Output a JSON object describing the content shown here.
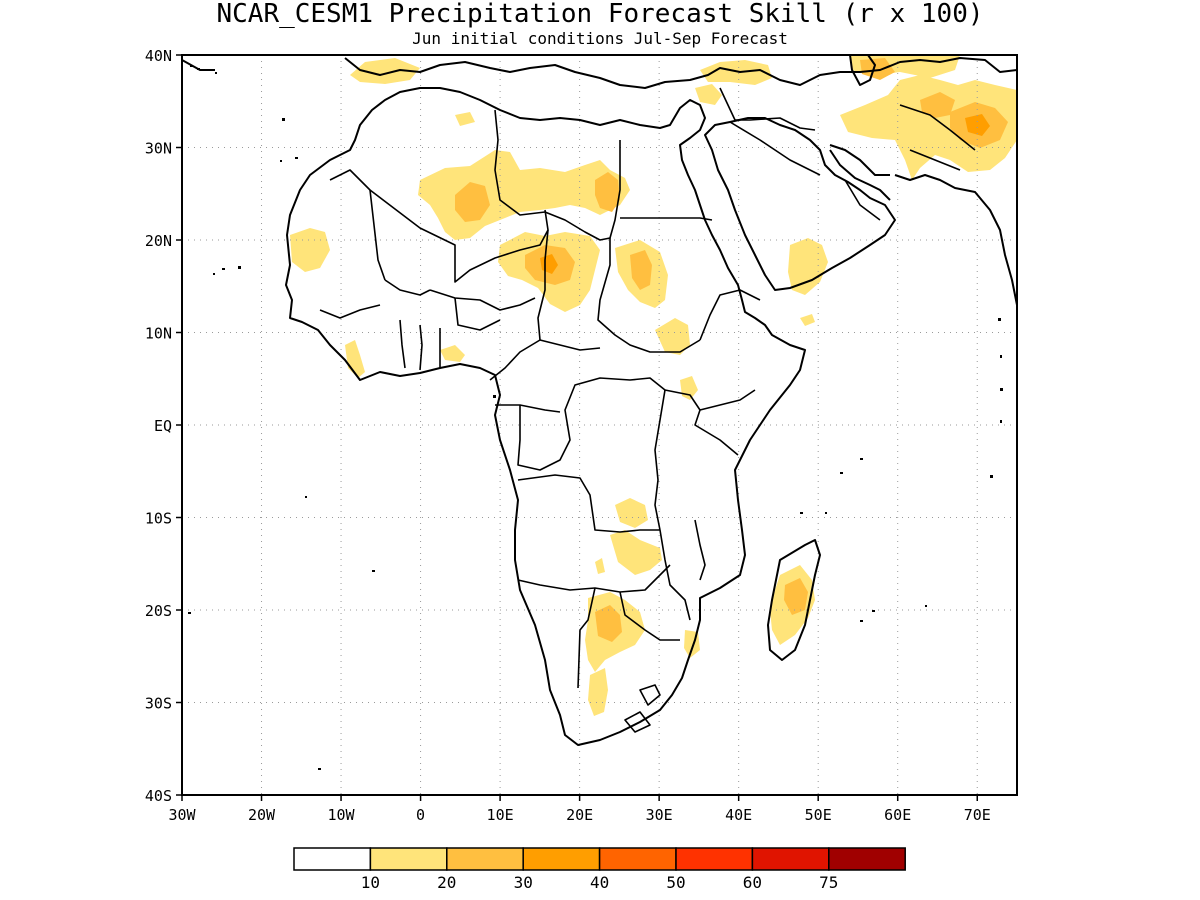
{
  "title": "NCAR_CESM1 Precipitation Forecast Skill (r x 100)",
  "subtitle": "Jun initial conditions  Jul-Sep Forecast",
  "map": {
    "lon_range": [
      -30,
      75
    ],
    "lat_range": [
      -40,
      40
    ],
    "lon_ticks": [
      {
        "value": -30,
        "label": "30W"
      },
      {
        "value": -20,
        "label": "20W"
      },
      {
        "value": -10,
        "label": "10W"
      },
      {
        "value": 0,
        "label": "0"
      },
      {
        "value": 10,
        "label": "10E"
      },
      {
        "value": 20,
        "label": "20E"
      },
      {
        "value": 30,
        "label": "30E"
      },
      {
        "value": 40,
        "label": "40E"
      },
      {
        "value": 50,
        "label": "50E"
      },
      {
        "value": 60,
        "label": "60E"
      },
      {
        "value": 70,
        "label": "70E"
      }
    ],
    "lat_ticks": [
      {
        "value": 40,
        "label": "40N"
      },
      {
        "value": 30,
        "label": "30N"
      },
      {
        "value": 20,
        "label": "20N"
      },
      {
        "value": 10,
        "label": "10N"
      },
      {
        "value": 0,
        "label": "EQ"
      },
      {
        "value": -10,
        "label": "10S"
      },
      {
        "value": -20,
        "label": "20S"
      },
      {
        "value": -30,
        "label": "30S"
      },
      {
        "value": -40,
        "label": "40S"
      }
    ],
    "grid": "dotted"
  },
  "legend": {
    "colors": [
      "#ffffff",
      "#ffe47a",
      "#ffbf40",
      "#ff9e00",
      "#ff6400",
      "#ff3200",
      "#e01400",
      "#a00000"
    ],
    "labels": [
      "10",
      "20",
      "30",
      "40",
      "50",
      "60",
      "75"
    ]
  },
  "skill_regions": [
    {
      "lon": 17,
      "lat": 17.5,
      "level": 2,
      "r_lon": 4,
      "r_lat": 3.5
    },
    {
      "lon": 4,
      "lat": 24,
      "level": 2,
      "r_lon": 3.5,
      "r_lat": 3
    },
    {
      "lon": 22,
      "lat": 25.5,
      "level": 2,
      "r_lon": 2.5,
      "r_lat": 2.5
    },
    {
      "lon": 69,
      "lat": 32.5,
      "level": 2,
      "r_lon": 4.5,
      "r_lat": 3
    },
    {
      "lon": 57,
      "lat": 38,
      "level": 2,
      "r_lon": 4,
      "r_lat": 2
    },
    {
      "lon": 26,
      "lat": -22,
      "level": 2,
      "r_lon": 2.5,
      "r_lat": 3
    }
  ]
}
